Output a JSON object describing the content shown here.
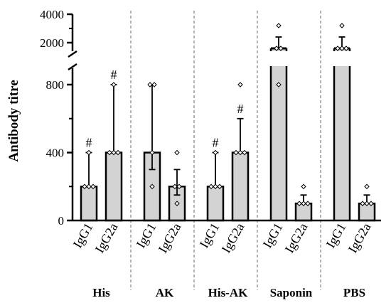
{
  "chart_data": {
    "type": "bar",
    "title": "",
    "ylabel": "Antibody titre",
    "xlabel": "",
    "y_axis_broken": true,
    "ylim_lower": [
      0,
      850
    ],
    "ylim_upper": [
      0,
      4000
    ],
    "yticks_lower": [
      "0",
      "400",
      "800"
    ],
    "yticks_upper": [
      "2000",
      "4000"
    ],
    "groups": [
      {
        "name": "His",
        "bars": [
          {
            "label": "IgG1",
            "value": 200,
            "err_low": 200,
            "err_high": 400,
            "points": [
              200,
              200,
              200,
              400
            ],
            "mark": "#"
          },
          {
            "label": "IgG2a",
            "value": 400,
            "err_low": 400,
            "err_high": 800,
            "points": [
              400,
              400,
              400,
              800
            ],
            "mark": "#"
          }
        ]
      },
      {
        "name": "AK",
        "bars": [
          {
            "label": "IgG1",
            "value": 400,
            "err_low": 300,
            "err_high": 800,
            "points": [
              200,
              400,
              800,
              800
            ],
            "mark": ""
          },
          {
            "label": "IgG2a",
            "value": 200,
            "err_low": 150,
            "err_high": 300,
            "points": [
              100,
              200,
              200,
              400
            ],
            "mark": ""
          }
        ]
      },
      {
        "name": "His-AK",
        "bars": [
          {
            "label": "IgG1",
            "value": 200,
            "err_low": 200,
            "err_high": 400,
            "points": [
              200,
              200,
              200,
              400
            ],
            "mark": "#"
          },
          {
            "label": "IgG2a",
            "value": 400,
            "err_low": 400,
            "err_high": 600,
            "points": [
              400,
              400,
              400,
              800
            ],
            "mark": "#"
          }
        ]
      },
      {
        "name": "Saponin",
        "bars": [
          {
            "label": "IgG1",
            "value": 1600,
            "err_low": 1600,
            "err_high": 2400,
            "points": [
              800,
              1600,
              1600,
              3200
            ],
            "mark": ""
          },
          {
            "label": "IgG2a",
            "value": 100,
            "err_low": 100,
            "err_high": 150,
            "points": [
              100,
              100,
              100,
              200
            ],
            "mark": ""
          }
        ]
      },
      {
        "name": "PBS",
        "bars": [
          {
            "label": "IgG1",
            "value": 1600,
            "err_low": 1600,
            "err_high": 2400,
            "points": [
              1600,
              1600,
              1600,
              3200
            ],
            "mark": ""
          },
          {
            "label": "IgG2a",
            "value": 100,
            "err_low": 100,
            "err_high": 150,
            "points": [
              100,
              100,
              100,
              200
            ],
            "mark": ""
          }
        ]
      }
    ],
    "bar_fill": "#d3d3d3",
    "bar_stroke": "#000000",
    "divider_color": "#808080"
  }
}
